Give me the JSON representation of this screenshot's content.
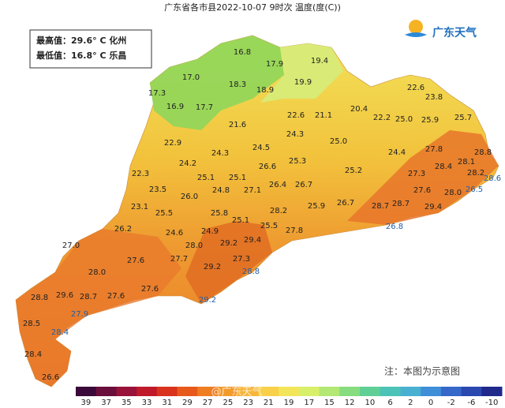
{
  "header": {
    "title": "广东省各市县2022-10-07  9时次  温度(度(C))"
  },
  "summary": {
    "max": "最高值：29.6° C 化州",
    "min": "最低值：16.8° C 乐昌"
  },
  "logo": {
    "text": "广东天气"
  },
  "note": "注：本图为示意图",
  "watermark": "@广东天气",
  "legend": {
    "ticks": [
      39,
      37,
      35,
      33,
      31,
      29,
      27,
      25,
      23,
      21,
      19,
      17,
      15,
      12,
      10,
      6,
      2,
      0,
      -2,
      -6,
      -10
    ]
  },
  "stations": [
    "16.8",
    "17.9",
    "19.4",
    "17.0",
    "18.3",
    "19.9",
    "18.9",
    "17.3",
    "16.9",
    "17.7",
    "22.6",
    "23.8",
    "20.4",
    "22.6",
    "21.1",
    "22.2",
    "25.0",
    "25.9",
    "25.7",
    "21.6",
    "22.9",
    "24.3",
    "24.5",
    "25.0",
    "24.3",
    "24.4",
    "27.8",
    "28.8",
    "28.1",
    "24.2",
    "25.3",
    "26.6",
    "25.2",
    "28.4",
    "28.2",
    "22.3",
    "25.1",
    "25.1",
    "27.3",
    "26.4",
    "26.7",
    "27.6",
    "28.0",
    "26.5",
    "28.6",
    "23.5",
    "24.8",
    "27.1",
    "26.0",
    "23.1",
    "25.8",
    "25.9",
    "26.7",
    "28.2",
    "28.7",
    "28.7",
    "29.4",
    "25.5",
    "25.1",
    "25.5",
    "27.8",
    "26.8",
    "26.2",
    "24.6",
    "24.9",
    "29.4",
    "28.0",
    "29.2",
    "27.0",
    "27.6",
    "27.7",
    "27.3",
    "28.8",
    "28.0",
    "29.2",
    "27.6",
    "28.8",
    "29.6",
    "28.7",
    "27.6",
    "29.2",
    "27.9",
    "28.5",
    "28.4",
    "28.4",
    "26.6"
  ]
}
